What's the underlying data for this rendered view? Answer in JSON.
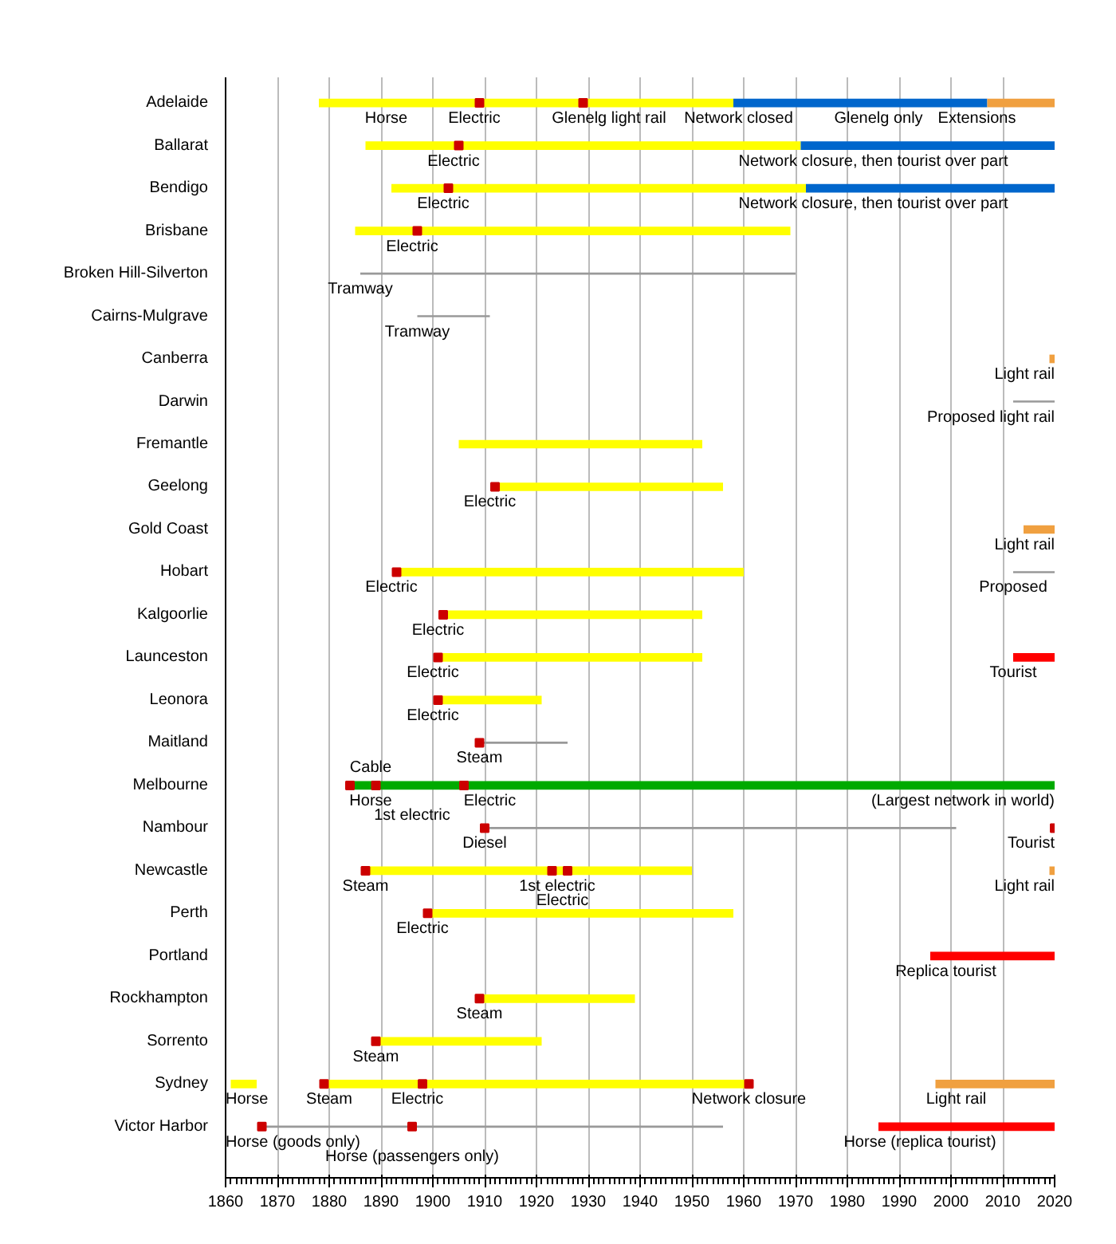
{
  "chart_data": {
    "type": "bar",
    "orientation": "horizontal",
    "grid": "x",
    "categories": [
      "Adelaide",
      "Ballarat",
      "Bendigo",
      "Brisbane",
      "Broken Hill-Silverton",
      "Cairns-Mulgrave",
      "Canberra",
      "Darwin",
      "Fremantle",
      "Geelong",
      "Gold Coast",
      "Hobart",
      "Kalgoorlie",
      "Launceston",
      "Leonora",
      "Maitland",
      "Melbourne",
      "Nambour",
      "Newcastle",
      "Perth",
      "Portland",
      "Rockhampton",
      "Sorrento",
      "Sydney",
      "Victor Harbor"
    ],
    "xlim": [
      1860,
      2020
    ],
    "xticks": [
      1860,
      1870,
      1880,
      1890,
      1900,
      1910,
      1920,
      1930,
      1940,
      1950,
      1960,
      1970,
      1980,
      1990,
      2000,
      2010,
      2020
    ],
    "series": [
      {
        "color": "#ffff00",
        "base": [
          1878,
          1887,
          1892,
          1885,
          null,
          null,
          null,
          null,
          1905,
          1912,
          null,
          1893,
          1902,
          1901,
          1901,
          null,
          null,
          null,
          1887,
          1899,
          null,
          1909,
          1889,
          1879,
          null
        ],
        "values": [
          80,
          84,
          80,
          84,
          null,
          null,
          null,
          null,
          47,
          44,
          null,
          67,
          50,
          51,
          20,
          null,
          null,
          null,
          63,
          59,
          null,
          30,
          32,
          82,
          null
        ]
      },
      {
        "color": "#ffff00",
        "base": [
          null,
          null,
          null,
          null,
          null,
          null,
          null,
          null,
          null,
          null,
          null,
          null,
          null,
          null,
          null,
          null,
          null,
          null,
          null,
          null,
          null,
          null,
          null,
          1861,
          null
        ],
        "values": [
          null,
          null,
          null,
          null,
          null,
          null,
          null,
          null,
          null,
          null,
          null,
          null,
          null,
          null,
          null,
          null,
          null,
          null,
          null,
          null,
          null,
          null,
          null,
          5,
          null
        ]
      },
      {
        "color": "#0066cc",
        "base": [
          1958,
          1971,
          1972,
          null,
          null,
          null,
          null,
          null,
          null,
          null,
          null,
          null,
          null,
          null,
          null,
          null,
          null,
          null,
          null,
          null,
          null,
          null,
          null,
          null,
          null
        ],
        "values": [
          49,
          49,
          48,
          null,
          null,
          null,
          null,
          null,
          null,
          null,
          null,
          null,
          null,
          null,
          null,
          null,
          null,
          null,
          null,
          null,
          null,
          null,
          null,
          null,
          null
        ]
      },
      {
        "color": "#f0a040",
        "base": [
          2007,
          null,
          null,
          null,
          null,
          null,
          2019,
          null,
          null,
          null,
          2014,
          null,
          null,
          null,
          null,
          null,
          null,
          null,
          2019,
          null,
          null,
          null,
          null,
          1997,
          null
        ],
        "values": [
          13,
          null,
          null,
          null,
          null,
          null,
          1,
          null,
          null,
          null,
          6,
          null,
          null,
          null,
          null,
          null,
          null,
          null,
          1,
          null,
          null,
          null,
          null,
          23,
          null
        ]
      },
      {
        "color": "#ff0000",
        "base": [
          null,
          null,
          null,
          null,
          null,
          null,
          null,
          null,
          null,
          null,
          null,
          null,
          null,
          2012,
          null,
          null,
          null,
          null,
          null,
          null,
          1996,
          null,
          null,
          null,
          1986
        ],
        "values": [
          null,
          null,
          null,
          null,
          null,
          null,
          null,
          null,
          null,
          null,
          null,
          null,
          null,
          8,
          null,
          null,
          null,
          null,
          null,
          null,
          24,
          null,
          null,
          null,
          34
        ]
      },
      {
        "color": "#00aa00",
        "base": [
          null,
          null,
          null,
          null,
          null,
          null,
          null,
          null,
          null,
          null,
          null,
          null,
          null,
          null,
          null,
          null,
          1884,
          null,
          null,
          null,
          null,
          null,
          null,
          null,
          null
        ],
        "values": [
          null,
          null,
          null,
          null,
          null,
          null,
          null,
          null,
          null,
          null,
          null,
          null,
          null,
          null,
          null,
          null,
          136,
          null,
          null,
          null,
          null,
          null,
          null,
          null,
          null
        ]
      },
      {
        "color": "#999999",
        "base": [
          null,
          null,
          null,
          null,
          1886,
          1897,
          null,
          2012,
          null,
          null,
          null,
          2012,
          null,
          null,
          null,
          1909,
          null,
          1910,
          null,
          null,
          null,
          null,
          null,
          null,
          1867
        ],
        "values": [
          null,
          null,
          null,
          null,
          84,
          14,
          null,
          8,
          null,
          null,
          null,
          8,
          null,
          null,
          null,
          17,
          null,
          91,
          null,
          null,
          null,
          null,
          null,
          null,
          89
        ]
      },
      {
        "type": "scatter",
        "marker": "square",
        "color": "#cc0000",
        "values": [
          1909,
          1905,
          1903,
          1897,
          null,
          null,
          null,
          null,
          null,
          1912,
          null,
          1893,
          1902,
          1901,
          1901,
          1909,
          1884,
          1910,
          1887,
          1899,
          null,
          1909,
          1889,
          1879,
          1867
        ]
      },
      {
        "type": "scatter",
        "marker": "square",
        "color": "#cc0000",
        "values": [
          1929,
          null,
          null,
          null,
          null,
          null,
          null,
          null,
          null,
          null,
          null,
          null,
          null,
          null,
          null,
          null,
          1889,
          2020,
          1923,
          null,
          null,
          null,
          null,
          1898,
          1896
        ]
      },
      {
        "type": "scatter",
        "marker": "square",
        "color": "#cc0000",
        "values": [
          null,
          null,
          null,
          null,
          null,
          null,
          null,
          null,
          null,
          null,
          null,
          null,
          null,
          null,
          null,
          null,
          1906,
          null,
          1926,
          null,
          null,
          null,
          null,
          1961,
          null
        ]
      }
    ],
    "annotations": [
      {
        "text": "Horse",
        "x": 1891,
        "y": "Adelaide"
      },
      {
        "text": "Electric",
        "x": 1908,
        "y": "Adelaide"
      },
      {
        "text": "Glenelg light rail",
        "x": 1934,
        "y": "Adelaide"
      },
      {
        "text": "Network closed",
        "x": 1959,
        "y": "Adelaide"
      },
      {
        "text": "Glenelg only",
        "x": 1986,
        "y": "Adelaide"
      },
      {
        "text": "Extensions",
        "x": 2005,
        "y": "Adelaide"
      },
      {
        "text": "Electric",
        "x": 1904,
        "y": "Ballarat"
      },
      {
        "text": "Network closure, then tourist over part",
        "x": 1985,
        "y": "Ballarat"
      },
      {
        "text": "Electric",
        "x": 1902,
        "y": "Bendigo"
      },
      {
        "text": "Network closure, then tourist over part",
        "x": 1985,
        "y": "Bendigo"
      },
      {
        "text": "Electric",
        "x": 1896,
        "y": "Brisbane"
      },
      {
        "text": "Tramway",
        "x": 1886,
        "y": "Broken Hill-Silverton"
      },
      {
        "text": "Tramway",
        "x": 1897,
        "y": "Cairns-Mulgrave"
      },
      {
        "text": "Light rail",
        "x": 2019,
        "y": "Canberra"
      },
      {
        "text": "Proposed light rail",
        "x": 2012,
        "y": "Darwin"
      },
      {
        "text": "Electric",
        "x": 1911,
        "y": "Geelong"
      },
      {
        "text": "Light rail",
        "x": 2014,
        "y": "Gold Coast"
      },
      {
        "text": "Electric",
        "x": 1892,
        "y": "Hobart"
      },
      {
        "text": "Proposed",
        "x": 2012,
        "y": "Hobart"
      },
      {
        "text": "Electric",
        "x": 1901,
        "y": "Kalgoorlie"
      },
      {
        "text": "Electric",
        "x": 1900,
        "y": "Launceston"
      },
      {
        "text": "Tourist",
        "x": 2012,
        "y": "Launceston"
      },
      {
        "text": "Electric",
        "x": 1900,
        "y": "Leonora"
      },
      {
        "text": "Steam",
        "x": 1909,
        "y": "Maitland"
      },
      {
        "text": "Horse",
        "x": 1888,
        "y": "Melbourne"
      },
      {
        "text": "1st electric",
        "x": 1896,
        "y": "Melbourne"
      },
      {
        "text": "Cable",
        "x": 1888,
        "y": "Melbourne"
      },
      {
        "text": "Electric",
        "x": 1911,
        "y": "Melbourne"
      },
      {
        "text": "(Largest network in world)",
        "x": 2006,
        "y": "Melbourne"
      },
      {
        "text": "Diesel",
        "x": 1910,
        "y": "Nambour"
      },
      {
        "text": "Tourist",
        "x": 2020,
        "y": "Nambour"
      },
      {
        "text": "Steam",
        "x": 1887,
        "y": "Newcastle"
      },
      {
        "text": "1st electric",
        "x": 1924,
        "y": "Newcastle"
      },
      {
        "text": "Electric",
        "x": 1925,
        "y": "Newcastle"
      },
      {
        "text": "Light rail",
        "x": 2019,
        "y": "Newcastle"
      },
      {
        "text": "Electric",
        "x": 1898,
        "y": "Perth"
      },
      {
        "text": "Replica tourist",
        "x": 1999,
        "y": "Portland"
      },
      {
        "text": "Steam",
        "x": 1909,
        "y": "Rockhampton"
      },
      {
        "text": "Steam",
        "x": 1889,
        "y": "Sorrento"
      },
      {
        "text": "Horse",
        "x": 1861,
        "y": "Sydney"
      },
      {
        "text": "Steam",
        "x": 1880,
        "y": "Sydney"
      },
      {
        "text": "Electric",
        "x": 1897,
        "y": "Sydney"
      },
      {
        "text": "Network closure",
        "x": 1961,
        "y": "Sydney"
      },
      {
        "text": "Light rail",
        "x": 2001,
        "y": "Sydney"
      },
      {
        "text": "Horse (goods only)",
        "x": 1867,
        "y": "Victor Harbor"
      },
      {
        "text": "Horse (passengers only)",
        "x": 1896,
        "y": "Victor Harbor"
      },
      {
        "text": "Horse (replica tourist)",
        "x": 1994,
        "y": "Victor Harbor"
      }
    ]
  }
}
